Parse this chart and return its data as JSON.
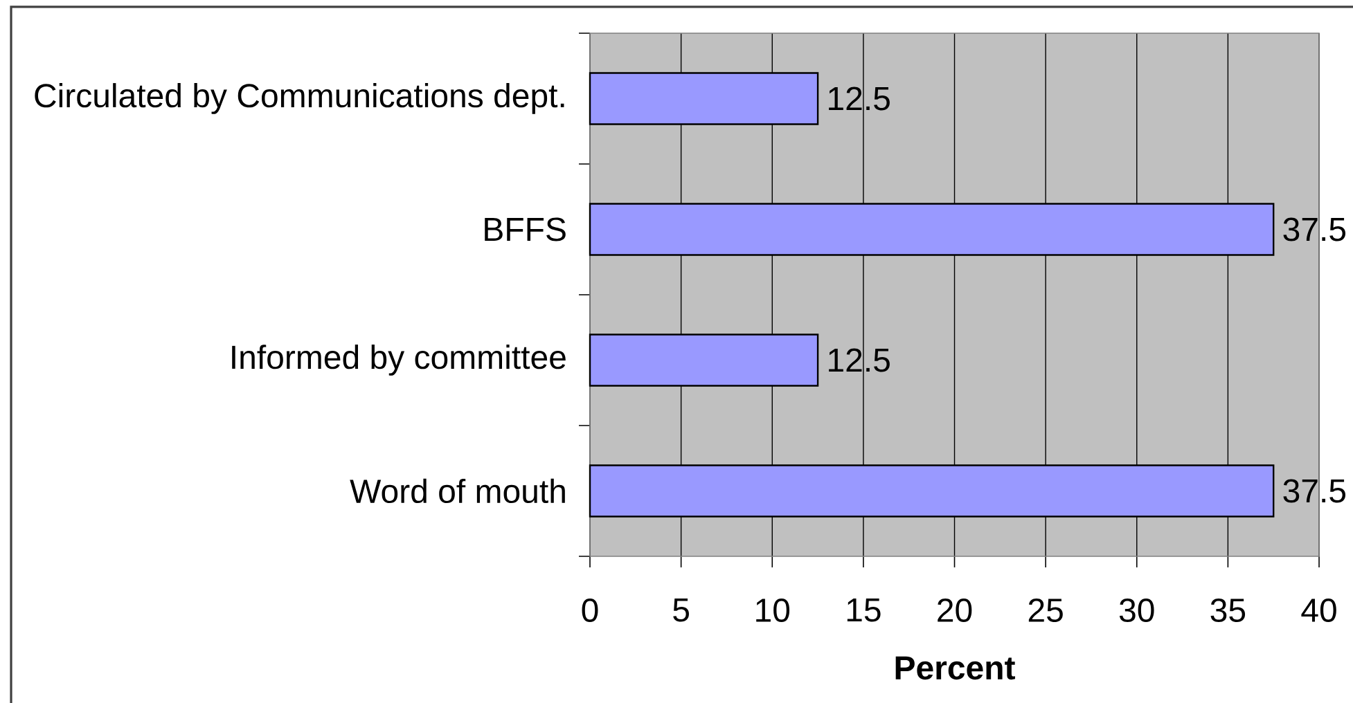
{
  "chart_data": {
    "type": "bar",
    "orientation": "horizontal",
    "categories": [
      "Circulated by Communications dept.",
      "BFFS",
      "Informed by committee",
      "Word of mouth"
    ],
    "values": [
      12.5,
      37.5,
      12.5,
      37.5
    ],
    "color": "#9999ff",
    "xlabel": "Percent",
    "xlim": [
      0,
      40
    ],
    "xticks": [
      0,
      5,
      10,
      15,
      20,
      25,
      30,
      35,
      40
    ],
    "grid": "x",
    "data_labels": true
  }
}
